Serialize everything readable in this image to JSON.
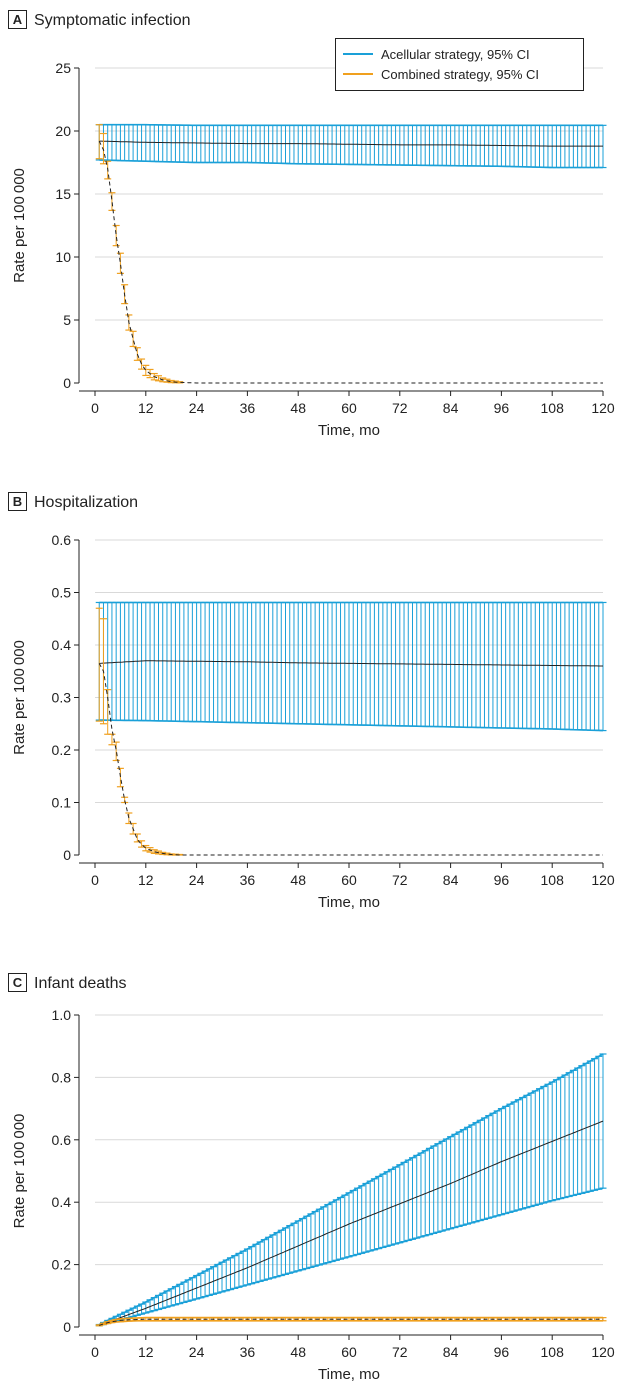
{
  "colors": {
    "acellular": "#1aa0d8",
    "combined": "#f0a01e",
    "mean_line": "#222222",
    "grid": "#d9d9d9"
  },
  "chart_data": [
    {
      "type": "line",
      "panel": "A",
      "title": "Symptomatic infection",
      "xlabel": "Time, mo",
      "ylabel": "Rate per 100 000",
      "xlim": [
        0,
        120
      ],
      "ylim": [
        0,
        25
      ],
      "xticks": [
        0,
        12,
        24,
        36,
        48,
        60,
        72,
        84,
        96,
        108,
        120
      ],
      "yticks": [
        0,
        5,
        10,
        15,
        20,
        25
      ],
      "ytick_labels": [
        "0",
        "5",
        "10",
        "15",
        "20",
        "25"
      ],
      "grid": true,
      "legend": "top-right",
      "series": [
        {
          "name": "Acellular strategy, 95% CI",
          "color_key": "acellular",
          "x": [
            1,
            12,
            24,
            36,
            48,
            60,
            72,
            84,
            96,
            108,
            120
          ],
          "mean": [
            19.2,
            19.1,
            19.05,
            19.0,
            19.0,
            18.95,
            18.9,
            18.9,
            18.85,
            18.8,
            18.8
          ],
          "lower": [
            17.7,
            17.6,
            17.5,
            17.5,
            17.4,
            17.35,
            17.3,
            17.25,
            17.2,
            17.1,
            17.1
          ],
          "upper": [
            20.5,
            20.5,
            20.45,
            20.45,
            20.45,
            20.45,
            20.45,
            20.45,
            20.45,
            20.45,
            20.45
          ]
        },
        {
          "name": "Combined strategy, 95% CI",
          "color_key": "combined",
          "x": [
            1,
            2,
            3,
            4,
            5,
            6,
            7,
            8,
            9,
            10,
            11,
            12,
            14,
            16,
            18,
            20,
            24,
            36,
            48,
            60,
            72,
            84,
            96,
            108,
            120
          ],
          "mean": [
            19.2,
            18.5,
            17.0,
            14.5,
            11.7,
            9.5,
            7.0,
            4.8,
            3.5,
            2.3,
            1.5,
            1.0,
            0.5,
            0.25,
            0.1,
            0.05,
            0.0,
            0.0,
            0.0,
            0.0,
            0.0,
            0.0,
            0.0,
            0.0,
            0.0
          ],
          "lower": [
            17.8,
            17.4,
            16.2,
            13.7,
            10.9,
            8.7,
            6.3,
            4.2,
            2.9,
            1.8,
            1.1,
            0.6,
            0.25,
            0.1,
            0.03,
            0.01,
            0.0,
            0.0,
            0.0,
            0.0,
            0.0,
            0.0,
            0.0,
            0.0,
            0.0
          ],
          "upper": [
            20.5,
            19.8,
            17.6,
            15.1,
            12.5,
            10.3,
            7.8,
            5.4,
            4.1,
            2.8,
            1.9,
            1.4,
            0.75,
            0.4,
            0.2,
            0.1,
            0.0,
            0.0,
            0.0,
            0.0,
            0.0,
            0.0,
            0.0,
            0.0,
            0.0
          ]
        }
      ]
    },
    {
      "type": "line",
      "panel": "B",
      "title": "Hospitalization",
      "xlabel": "Time, mo",
      "ylabel": "Rate per 100 000",
      "xlim": [
        0,
        120
      ],
      "ylim": [
        0,
        0.6
      ],
      "xticks": [
        0,
        12,
        24,
        36,
        48,
        60,
        72,
        84,
        96,
        108,
        120
      ],
      "yticks": [
        0,
        0.1,
        0.2,
        0.3,
        0.4,
        0.5,
        0.6
      ],
      "ytick_labels": [
        "0",
        "0.1",
        "0.2",
        "0.3",
        "0.4",
        "0.5",
        "0.6"
      ],
      "grid": true,
      "series": [
        {
          "name": "Acellular strategy, 95% CI",
          "color_key": "acellular",
          "x": [
            1,
            12,
            24,
            36,
            48,
            60,
            72,
            84,
            96,
            108,
            120
          ],
          "mean": [
            0.365,
            0.37,
            0.369,
            0.368,
            0.366,
            0.365,
            0.364,
            0.363,
            0.362,
            0.361,
            0.36
          ],
          "lower": [
            0.257,
            0.256,
            0.254,
            0.252,
            0.25,
            0.248,
            0.246,
            0.244,
            0.242,
            0.24,
            0.237
          ],
          "upper": [
            0.481,
            0.481,
            0.481,
            0.481,
            0.481,
            0.481,
            0.481,
            0.481,
            0.481,
            0.481,
            0.481
          ]
        },
        {
          "name": "Combined strategy, 95% CI",
          "color_key": "combined",
          "x": [
            1,
            2,
            3,
            4,
            5,
            6,
            7,
            8,
            9,
            10,
            11,
            12,
            14,
            16,
            18,
            20,
            24,
            36,
            48,
            60,
            72,
            84,
            96,
            108,
            120
          ],
          "mean": [
            0.365,
            0.35,
            0.3,
            0.24,
            0.2,
            0.15,
            0.105,
            0.07,
            0.05,
            0.03,
            0.02,
            0.013,
            0.006,
            0.003,
            0.001,
            0.0,
            0.0,
            0.0,
            0.0,
            0.0,
            0.0,
            0.0,
            0.0,
            0.0,
            0.0
          ],
          "lower": [
            0.255,
            0.25,
            0.23,
            0.21,
            0.18,
            0.13,
            0.1,
            0.06,
            0.04,
            0.025,
            0.015,
            0.008,
            0.003,
            0.001,
            0.0,
            0.0,
            0.0,
            0.0,
            0.0,
            0.0,
            0.0,
            0.0,
            0.0,
            0.0,
            0.0
          ],
          "upper": [
            0.47,
            0.45,
            0.315,
            0.23,
            0.215,
            0.165,
            0.11,
            0.08,
            0.06,
            0.04,
            0.027,
            0.018,
            0.01,
            0.005,
            0.002,
            0.001,
            0.0,
            0.0,
            0.0,
            0.0,
            0.0,
            0.0,
            0.0,
            0.0,
            0.0
          ]
        }
      ]
    },
    {
      "type": "line",
      "panel": "C",
      "title": "Infant deaths",
      "xlabel": "Time, mo",
      "ylabel": "Rate per 100 000",
      "xlim": [
        0,
        120
      ],
      "ylim": [
        0,
        1.0
      ],
      "xticks": [
        0,
        12,
        24,
        36,
        48,
        60,
        72,
        84,
        96,
        108,
        120
      ],
      "yticks": [
        0,
        0.2,
        0.4,
        0.6,
        0.8,
        1.0
      ],
      "ytick_labels": [
        "0",
        "0.2",
        "0.4",
        "0.6",
        "0.8",
        "1.0"
      ],
      "grid": true,
      "series": [
        {
          "name": "Acellular strategy, 95% CI",
          "color_key": "acellular",
          "x": [
            1,
            12,
            24,
            36,
            48,
            60,
            72,
            84,
            96,
            108,
            120
          ],
          "mean": [
            0.005,
            0.06,
            0.125,
            0.19,
            0.26,
            0.33,
            0.395,
            0.46,
            0.53,
            0.595,
            0.66
          ],
          "lower": [
            0.004,
            0.045,
            0.09,
            0.135,
            0.18,
            0.225,
            0.27,
            0.315,
            0.36,
            0.405,
            0.445
          ],
          "upper": [
            0.008,
            0.08,
            0.165,
            0.25,
            0.34,
            0.43,
            0.52,
            0.61,
            0.7,
            0.785,
            0.875
          ]
        },
        {
          "name": "Combined strategy, 95% CI",
          "color_key": "combined",
          "x": [
            1,
            2,
            3,
            4,
            5,
            6,
            8,
            10,
            12,
            18,
            24,
            36,
            48,
            60,
            72,
            84,
            96,
            108,
            120
          ],
          "mean": [
            0.005,
            0.01,
            0.014,
            0.017,
            0.019,
            0.021,
            0.023,
            0.024,
            0.025,
            0.025,
            0.025,
            0.025,
            0.025,
            0.025,
            0.025,
            0.025,
            0.025,
            0.025,
            0.025
          ],
          "lower": [
            0.004,
            0.008,
            0.011,
            0.014,
            0.016,
            0.017,
            0.019,
            0.02,
            0.02,
            0.02,
            0.02,
            0.02,
            0.02,
            0.02,
            0.02,
            0.02,
            0.02,
            0.02,
            0.02
          ],
          "upper": [
            0.007,
            0.012,
            0.017,
            0.021,
            0.024,
            0.026,
            0.028,
            0.029,
            0.03,
            0.03,
            0.03,
            0.03,
            0.03,
            0.03,
            0.03,
            0.03,
            0.03,
            0.03,
            0.03
          ]
        }
      ]
    }
  ]
}
